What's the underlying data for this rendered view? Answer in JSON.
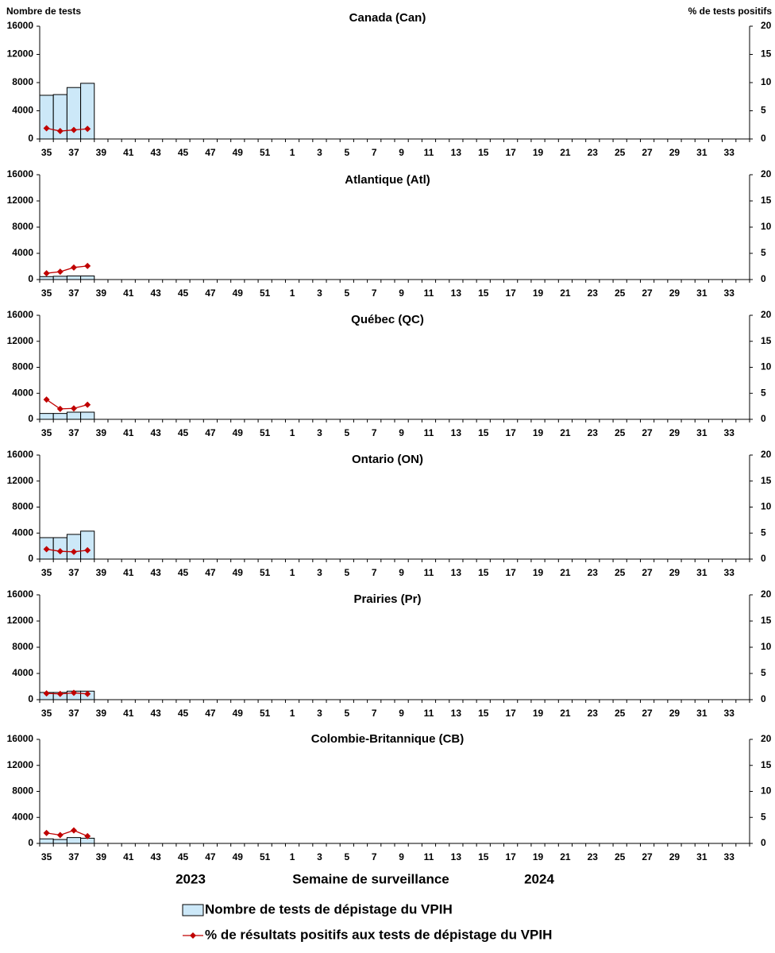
{
  "chart_data": [
    {
      "type": "bar-line",
      "title": "Canada (Can)",
      "ylabel": "Nombre de tests",
      "y2label": "% de tests positifs",
      "categories": [
        35,
        null,
        37,
        null,
        39,
        null,
        41,
        null,
        43,
        null,
        45,
        null,
        47,
        null,
        49,
        null,
        51,
        null,
        1,
        null,
        3,
        null,
        5,
        null,
        7,
        null,
        9,
        null,
        11,
        null,
        13,
        null,
        15,
        null,
        17,
        null,
        19,
        null,
        21,
        null,
        23,
        null,
        25,
        null,
        27,
        null,
        29,
        null,
        31,
        null,
        33,
        null
      ],
      "series": [
        {
          "name": "Nombre de tests de dépistage du VPIH",
          "kind": "bar",
          "color": "#cce8f8",
          "values": [
            6200,
            6300,
            7300,
            7900,
            null,
            null,
            null,
            null,
            null,
            null,
            null,
            null,
            null,
            null,
            null,
            null,
            null,
            null,
            null,
            null,
            null,
            null,
            null,
            null,
            null,
            null,
            null,
            null,
            null,
            null,
            null,
            null,
            null,
            null,
            null,
            null,
            null,
            null,
            null,
            null,
            null,
            null,
            null,
            null,
            null,
            null,
            null,
            null,
            null,
            null,
            null,
            null
          ]
        },
        {
          "name": "% de résultats positifs aux tests de dépistage du VPIH",
          "kind": "line",
          "axis": "y2",
          "color": "#c00000",
          "values": [
            1.9,
            1.4,
            1.6,
            1.8,
            null,
            null,
            null,
            null,
            null,
            null,
            null,
            null,
            null,
            null,
            null,
            null,
            null,
            null,
            null,
            null,
            null,
            null,
            null,
            null,
            null,
            null,
            null,
            null,
            null,
            null,
            null,
            null,
            null,
            null,
            null,
            null,
            null,
            null,
            null,
            null,
            null,
            null,
            null,
            null,
            null,
            null,
            null,
            null,
            null,
            null,
            null,
            null
          ]
        }
      ],
      "ylim": [
        0,
        16000
      ],
      "yticks": [
        0,
        4000,
        8000,
        12000,
        16000
      ],
      "y2lim": [
        0,
        20
      ],
      "y2ticks": [
        0,
        5,
        10,
        15,
        20
      ]
    },
    {
      "type": "bar-line",
      "title": "Atlantique (Atl)",
      "categories": [
        35,
        null,
        37,
        null,
        39,
        null,
        41,
        null,
        43,
        null,
        45,
        null,
        47,
        null,
        49,
        null,
        51,
        null,
        1,
        null,
        3,
        null,
        5,
        null,
        7,
        null,
        9,
        null,
        11,
        null,
        13,
        null,
        15,
        null,
        17,
        null,
        19,
        null,
        21,
        null,
        23,
        null,
        25,
        null,
        27,
        null,
        29,
        null,
        31,
        null,
        33,
        null
      ],
      "series": [
        {
          "kind": "bar",
          "color": "#cce8f8",
          "values": [
            450,
            500,
            550,
            550,
            null,
            null,
            null,
            null,
            null,
            null,
            null,
            null,
            null,
            null,
            null,
            null,
            null,
            null,
            null,
            null,
            null,
            null,
            null,
            null,
            null,
            null,
            null,
            null,
            null,
            null,
            null,
            null,
            null,
            null,
            null,
            null,
            null,
            null,
            null,
            null,
            null,
            null,
            null,
            null,
            null,
            null,
            null,
            null,
            null,
            null,
            null,
            null
          ]
        },
        {
          "kind": "line",
          "axis": "y2",
          "color": "#c00000",
          "values": [
            1.2,
            1.5,
            2.3,
            2.6,
            null,
            null,
            null,
            null,
            null,
            null,
            null,
            null,
            null,
            null,
            null,
            null,
            null,
            null,
            null,
            null,
            null,
            null,
            null,
            null,
            null,
            null,
            null,
            null,
            null,
            null,
            null,
            null,
            null,
            null,
            null,
            null,
            null,
            null,
            null,
            null,
            null,
            null,
            null,
            null,
            null,
            null,
            null,
            null,
            null,
            null,
            null,
            null
          ]
        }
      ],
      "ylim": [
        0,
        16000
      ],
      "yticks": [
        0,
        4000,
        8000,
        12000,
        16000
      ],
      "y2lim": [
        0,
        20
      ],
      "y2ticks": [
        0,
        5,
        10,
        15,
        20
      ]
    },
    {
      "type": "bar-line",
      "title": "Québec (QC)",
      "categories": [
        35,
        null,
        37,
        null,
        39,
        null,
        41,
        null,
        43,
        null,
        45,
        null,
        47,
        null,
        49,
        null,
        51,
        null,
        1,
        null,
        3,
        null,
        5,
        null,
        7,
        null,
        9,
        null,
        11,
        null,
        13,
        null,
        15,
        null,
        17,
        null,
        19,
        null,
        21,
        null,
        23,
        null,
        25,
        null,
        27,
        null,
        29,
        null,
        31,
        null,
        33,
        null
      ],
      "series": [
        {
          "kind": "bar",
          "color": "#cce8f8",
          "values": [
            900,
            900,
            1100,
            1100,
            null,
            null,
            null,
            null,
            null,
            null,
            null,
            null,
            null,
            null,
            null,
            null,
            null,
            null,
            null,
            null,
            null,
            null,
            null,
            null,
            null,
            null,
            null,
            null,
            null,
            null,
            null,
            null,
            null,
            null,
            null,
            null,
            null,
            null,
            null,
            null,
            null,
            null,
            null,
            null,
            null,
            null,
            null,
            null,
            null,
            null,
            null,
            null
          ]
        },
        {
          "kind": "line",
          "axis": "y2",
          "color": "#c00000",
          "values": [
            3.8,
            2.0,
            2.1,
            2.8,
            null,
            null,
            null,
            null,
            null,
            null,
            null,
            null,
            null,
            null,
            null,
            null,
            null,
            null,
            null,
            null,
            null,
            null,
            null,
            null,
            null,
            null,
            null,
            null,
            null,
            null,
            null,
            null,
            null,
            null,
            null,
            null,
            null,
            null,
            null,
            null,
            null,
            null,
            null,
            null,
            null,
            null,
            null,
            null,
            null,
            null,
            null,
            null
          ]
        }
      ],
      "ylim": [
        0,
        16000
      ],
      "yticks": [
        0,
        4000,
        8000,
        12000,
        16000
      ],
      "y2lim": [
        0,
        20
      ],
      "y2ticks": [
        0,
        5,
        10,
        15,
        20
      ]
    },
    {
      "type": "bar-line",
      "title": "Ontario (ON)",
      "categories": [
        35,
        null,
        37,
        null,
        39,
        null,
        41,
        null,
        43,
        null,
        45,
        null,
        47,
        null,
        49,
        null,
        51,
        null,
        1,
        null,
        3,
        null,
        5,
        null,
        7,
        null,
        9,
        null,
        11,
        null,
        13,
        null,
        15,
        null,
        17,
        null,
        19,
        null,
        21,
        null,
        23,
        null,
        25,
        null,
        27,
        null,
        29,
        null,
        31,
        null,
        33,
        null
      ],
      "series": [
        {
          "kind": "bar",
          "color": "#cce8f8",
          "values": [
            3300,
            3300,
            3800,
            4300,
            null,
            null,
            null,
            null,
            null,
            null,
            null,
            null,
            null,
            null,
            null,
            null,
            null,
            null,
            null,
            null,
            null,
            null,
            null,
            null,
            null,
            null,
            null,
            null,
            null,
            null,
            null,
            null,
            null,
            null,
            null,
            null,
            null,
            null,
            null,
            null,
            null,
            null,
            null,
            null,
            null,
            null,
            null,
            null,
            null,
            null,
            null,
            null
          ]
        },
        {
          "kind": "line",
          "axis": "y2",
          "color": "#c00000",
          "values": [
            1.9,
            1.5,
            1.4,
            1.7,
            null,
            null,
            null,
            null,
            null,
            null,
            null,
            null,
            null,
            null,
            null,
            null,
            null,
            null,
            null,
            null,
            null,
            null,
            null,
            null,
            null,
            null,
            null,
            null,
            null,
            null,
            null,
            null,
            null,
            null,
            null,
            null,
            null,
            null,
            null,
            null,
            null,
            null,
            null,
            null,
            null,
            null,
            null,
            null,
            null,
            null,
            null,
            null
          ]
        }
      ],
      "ylim": [
        0,
        16000
      ],
      "yticks": [
        0,
        4000,
        8000,
        12000,
        16000
      ],
      "y2lim": [
        0,
        20
      ],
      "y2ticks": [
        0,
        5,
        10,
        15,
        20
      ]
    },
    {
      "type": "bar-line",
      "title": "Prairies (Pr)",
      "categories": [
        35,
        null,
        37,
        null,
        39,
        null,
        41,
        null,
        43,
        null,
        45,
        null,
        47,
        null,
        49,
        null,
        51,
        null,
        1,
        null,
        3,
        null,
        5,
        null,
        7,
        null,
        9,
        null,
        11,
        null,
        13,
        null,
        15,
        null,
        17,
        null,
        19,
        null,
        21,
        null,
        23,
        null,
        25,
        null,
        27,
        null,
        29,
        null,
        31,
        null,
        33,
        null
      ],
      "series": [
        {
          "kind": "bar",
          "color": "#cce8f8",
          "values": [
            1100,
            1100,
            1300,
            1300,
            null,
            null,
            null,
            null,
            null,
            null,
            null,
            null,
            null,
            null,
            null,
            null,
            null,
            null,
            null,
            null,
            null,
            null,
            null,
            null,
            null,
            null,
            null,
            null,
            null,
            null,
            null,
            null,
            null,
            null,
            null,
            null,
            null,
            null,
            null,
            null,
            null,
            null,
            null,
            null,
            null,
            null,
            null,
            null,
            null,
            null,
            null,
            null
          ]
        },
        {
          "kind": "line",
          "axis": "y2",
          "color": "#c00000",
          "values": [
            1.2,
            1.1,
            1.3,
            1.1,
            null,
            null,
            null,
            null,
            null,
            null,
            null,
            null,
            null,
            null,
            null,
            null,
            null,
            null,
            null,
            null,
            null,
            null,
            null,
            null,
            null,
            null,
            null,
            null,
            null,
            null,
            null,
            null,
            null,
            null,
            null,
            null,
            null,
            null,
            null,
            null,
            null,
            null,
            null,
            null,
            null,
            null,
            null,
            null,
            null,
            null,
            null,
            null
          ]
        }
      ],
      "ylim": [
        0,
        16000
      ],
      "yticks": [
        0,
        4000,
        8000,
        12000,
        16000
      ],
      "y2lim": [
        0,
        20
      ],
      "y2ticks": [
        0,
        5,
        10,
        15,
        20
      ]
    },
    {
      "type": "bar-line",
      "title": "Colombie-Britannique (CB)",
      "xlabel": "Semaine de surveillance",
      "annotations": [
        "2023",
        "2024"
      ],
      "categories": [
        35,
        null,
        37,
        null,
        39,
        null,
        41,
        null,
        43,
        null,
        45,
        null,
        47,
        null,
        49,
        null,
        51,
        null,
        1,
        null,
        3,
        null,
        5,
        null,
        7,
        null,
        9,
        null,
        11,
        null,
        13,
        null,
        15,
        null,
        17,
        null,
        19,
        null,
        21,
        null,
        23,
        null,
        25,
        null,
        27,
        null,
        29,
        null,
        31,
        null,
        33,
        null
      ],
      "series": [
        {
          "kind": "bar",
          "color": "#cce8f8",
          "values": [
            700,
            600,
            900,
            800,
            null,
            null,
            null,
            null,
            null,
            null,
            null,
            null,
            null,
            null,
            null,
            null,
            null,
            null,
            null,
            null,
            null,
            null,
            null,
            null,
            null,
            null,
            null,
            null,
            null,
            null,
            null,
            null,
            null,
            null,
            null,
            null,
            null,
            null,
            null,
            null,
            null,
            null,
            null,
            null,
            null,
            null,
            null,
            null,
            null,
            null,
            null,
            null
          ]
        },
        {
          "kind": "line",
          "axis": "y2",
          "color": "#c00000",
          "values": [
            2.0,
            1.6,
            2.5,
            1.4,
            null,
            null,
            null,
            null,
            null,
            null,
            null,
            null,
            null,
            null,
            null,
            null,
            null,
            null,
            null,
            null,
            null,
            null,
            null,
            null,
            null,
            null,
            null,
            null,
            null,
            null,
            null,
            null,
            null,
            null,
            null,
            null,
            null,
            null,
            null,
            null,
            null,
            null,
            null,
            null,
            null,
            null,
            null,
            null,
            null,
            null,
            null,
            null
          ]
        }
      ],
      "ylim": [
        0,
        16000
      ],
      "yticks": [
        0,
        4000,
        8000,
        12000,
        16000
      ],
      "y2lim": [
        0,
        20
      ],
      "y2ticks": [
        0,
        5,
        10,
        15,
        20
      ]
    }
  ]
}
